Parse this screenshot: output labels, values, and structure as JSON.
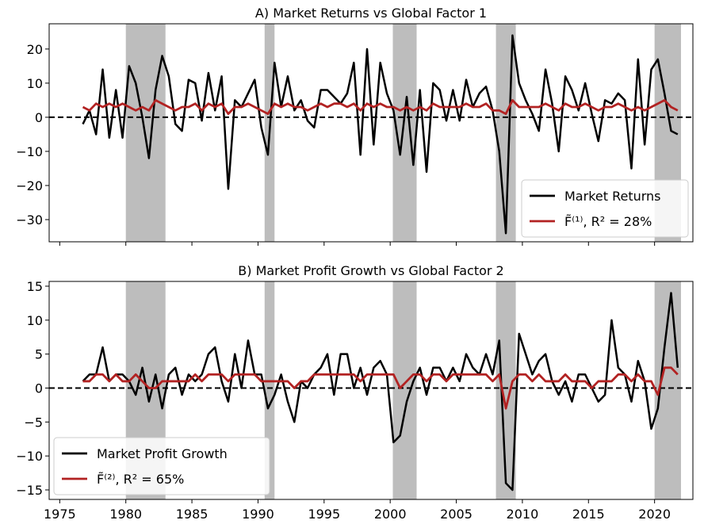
{
  "chart_data": [
    {
      "type": "line",
      "title": "A) Market Returns vs Global Factor 1",
      "x": [
        1976.75,
        1977.25,
        1977.75,
        1978.25,
        1978.75,
        1979.25,
        1979.75,
        1980.25,
        1980.75,
        1981.25,
        1981.75,
        1982.25,
        1982.75,
        1983.25,
        1983.75,
        1984.25,
        1984.75,
        1985.25,
        1985.75,
        1986.25,
        1986.75,
        1987.25,
        1987.75,
        1988.25,
        1988.75,
        1989.25,
        1989.75,
        1990.25,
        1990.75,
        1991.25,
        1991.75,
        1992.25,
        1992.75,
        1993.25,
        1993.75,
        1994.25,
        1994.75,
        1995.25,
        1995.75,
        1996.25,
        1996.75,
        1997.25,
        1997.75,
        1998.25,
        1998.75,
        1999.25,
        1999.75,
        2000.25,
        2000.75,
        2001.25,
        2001.75,
        2002.25,
        2002.75,
        2003.25,
        2003.75,
        2004.25,
        2004.75,
        2005.25,
        2005.75,
        2006.25,
        2006.75,
        2007.25,
        2007.75,
        2008.25,
        2008.75,
        2009.25,
        2009.75,
        2010.25,
        2010.75,
        2011.25,
        2011.75,
        2012.25,
        2012.75,
        2013.25,
        2013.75,
        2014.25,
        2014.75,
        2015.25,
        2015.75,
        2016.25,
        2016.75,
        2017.25,
        2017.75,
        2018.25,
        2018.75,
        2019.25,
        2019.75,
        2020.25,
        2020.75,
        2021.25,
        2021.75
      ],
      "series": [
        {
          "name": "Market Returns",
          "color": "#000000",
          "values": [
            -2,
            2,
            -5,
            14,
            -6,
            8,
            -6,
            15,
            10,
            0,
            -12,
            8,
            18,
            12,
            -2,
            -4,
            11,
            10,
            -1,
            13,
            2,
            12,
            -21,
            5,
            3,
            7,
            11,
            -3,
            -11,
            16,
            3,
            12,
            2,
            5,
            -1,
            -3,
            8,
            8,
            6,
            4,
            7,
            16,
            -11,
            20,
            -8,
            16,
            7,
            2,
            -11,
            6,
            -14,
            8,
            -16,
            10,
            8,
            -1,
            8,
            -1,
            11,
            3,
            7,
            9,
            2,
            -10,
            -34,
            24,
            10,
            5,
            1,
            -4,
            14,
            4,
            -10,
            12,
            8,
            2,
            10,
            1,
            -7,
            5,
            4,
            7,
            5,
            -15,
            17,
            -8,
            14,
            17,
            7,
            -4,
            -5
          ]
        },
        {
          "name": "F̃⁽¹⁾, R² = 28%",
          "color": "#b22222",
          "values": [
            3,
            2,
            4,
            3,
            4,
            3,
            4,
            3,
            2,
            3,
            2,
            5,
            4,
            3,
            2,
            3,
            3,
            4,
            2,
            4,
            3,
            4,
            1,
            3,
            3,
            4,
            3,
            2,
            1,
            4,
            3,
            4,
            3,
            3,
            2,
            3,
            4,
            3,
            4,
            4,
            3,
            4,
            2,
            4,
            3,
            4,
            3,
            3,
            2,
            3,
            2,
            3,
            2,
            4,
            3,
            3,
            3,
            3,
            4,
            3,
            3,
            4,
            2,
            2,
            1,
            5,
            3,
            3,
            3,
            3,
            4,
            3,
            2,
            4,
            3,
            3,
            4,
            3,
            2,
            3,
            3,
            4,
            3,
            2,
            3,
            2,
            3,
            4,
            5,
            3,
            2
          ]
        }
      ],
      "xlim": [
        1974.2,
        2022.9
      ],
      "ylim": [
        -36.5,
        27.4
      ],
      "xticks": [
        1975,
        1980,
        1985,
        1990,
        1995,
        2000,
        2005,
        2010,
        2015,
        2020
      ],
      "show_xtick_labels": false,
      "yticks": [
        {
          "value": -30,
          "label": "−30"
        },
        {
          "value": -20,
          "label": "−20"
        },
        {
          "value": -10,
          "label": "−10"
        },
        0,
        10,
        20
      ],
      "shaded_spans": [
        [
          1980,
          1983
        ],
        [
          1990.5,
          1991.25
        ],
        [
          2000.2,
          2002
        ],
        [
          2008,
          2009.5
        ],
        [
          2020,
          2022
        ]
      ],
      "hline": 0,
      "legend": "lower right"
    },
    {
      "type": "line",
      "title": "B) Market Profit Growth vs Global Factor 2",
      "x": [
        1976.75,
        1977.25,
        1977.75,
        1978.25,
        1978.75,
        1979.25,
        1979.75,
        1980.25,
        1980.75,
        1981.25,
        1981.75,
        1982.25,
        1982.75,
        1983.25,
        1983.75,
        1984.25,
        1984.75,
        1985.25,
        1985.75,
        1986.25,
        1986.75,
        1987.25,
        1987.75,
        1988.25,
        1988.75,
        1989.25,
        1989.75,
        1990.25,
        1990.75,
        1991.25,
        1991.75,
        1992.25,
        1992.75,
        1993.25,
        1993.75,
        1994.25,
        1994.75,
        1995.25,
        1995.75,
        1996.25,
        1996.75,
        1997.25,
        1997.75,
        1998.25,
        1998.75,
        1999.25,
        1999.75,
        2000.25,
        2000.75,
        2001.25,
        2001.75,
        2002.25,
        2002.75,
        2003.25,
        2003.75,
        2004.25,
        2004.75,
        2005.25,
        2005.75,
        2006.25,
        2006.75,
        2007.25,
        2007.75,
        2008.25,
        2008.75,
        2009.25,
        2009.75,
        2010.25,
        2010.75,
        2011.25,
        2011.75,
        2012.25,
        2012.75,
        2013.25,
        2013.75,
        2014.25,
        2014.75,
        2015.25,
        2015.75,
        2016.25,
        2016.75,
        2017.25,
        2017.75,
        2018.25,
        2018.75,
        2019.25,
        2019.75,
        2020.25,
        2020.75,
        2021.25,
        2021.75
      ],
      "series": [
        {
          "name": "Market Profit Growth",
          "color": "#000000",
          "values": [
            1,
            2,
            2,
            6,
            1,
            2,
            2,
            1,
            -1,
            3,
            -2,
            2,
            -3,
            2,
            3,
            -1,
            2,
            1,
            2,
            5,
            6,
            1,
            -2,
            5,
            0,
            7,
            2,
            2,
            -3,
            -1,
            2,
            -2,
            -5,
            1,
            0,
            2,
            3,
            5,
            -1,
            5,
            5,
            0,
            3,
            -1,
            3,
            4,
            2,
            -8,
            -7,
            -2,
            1,
            3,
            -1,
            3,
            3,
            1,
            3,
            1,
            5,
            3,
            2,
            5,
            2,
            7,
            -14,
            -15,
            8,
            5,
            2,
            4,
            5,
            1,
            -1,
            1,
            -2,
            2,
            2,
            0,
            -2,
            -1,
            10,
            3,
            2,
            -2,
            4,
            1,
            -6,
            -3,
            6,
            14,
            3
          ]
        },
        {
          "name": "F̃⁽²⁾, R² = 65%",
          "color": "#b22222",
          "values": [
            1,
            1,
            2,
            2,
            1,
            2,
            1,
            1,
            2,
            1,
            0,
            0,
            1,
            1,
            1,
            1,
            1,
            2,
            1,
            2,
            2,
            2,
            1,
            2,
            2,
            2,
            2,
            1,
            1,
            1,
            1,
            1,
            0,
            1,
            1,
            2,
            2,
            2,
            2,
            2,
            2,
            2,
            1,
            2,
            2,
            2,
            2,
            2,
            0,
            1,
            2,
            2,
            1,
            2,
            2,
            1,
            2,
            2,
            2,
            2,
            2,
            2,
            1,
            2,
            -3,
            1,
            2,
            2,
            1,
            2,
            1,
            1,
            1,
            2,
            1,
            1,
            1,
            0,
            1,
            1,
            1,
            2,
            2,
            1,
            2,
            1,
            1,
            -1,
            3,
            3,
            2
          ]
        }
      ],
      "xlim": [
        1974.2,
        2022.9
      ],
      "ylim": [
        -16.4,
        15.7
      ],
      "xticks": [
        1975,
        1980,
        1985,
        1990,
        1995,
        2000,
        2005,
        2010,
        2015,
        2020
      ],
      "show_xtick_labels": true,
      "yticks": [
        {
          "value": -15,
          "label": "−15"
        },
        {
          "value": -10,
          "label": "−10"
        },
        {
          "value": -5,
          "label": "−5"
        },
        0,
        5,
        10,
        15
      ],
      "shaded_spans": [
        [
          1980,
          1983
        ],
        [
          1990.5,
          1991.25
        ],
        [
          2000.2,
          2002
        ],
        [
          2008,
          2009.5
        ],
        [
          2020,
          2022
        ]
      ],
      "hline": 0,
      "legend": "lower left"
    }
  ]
}
